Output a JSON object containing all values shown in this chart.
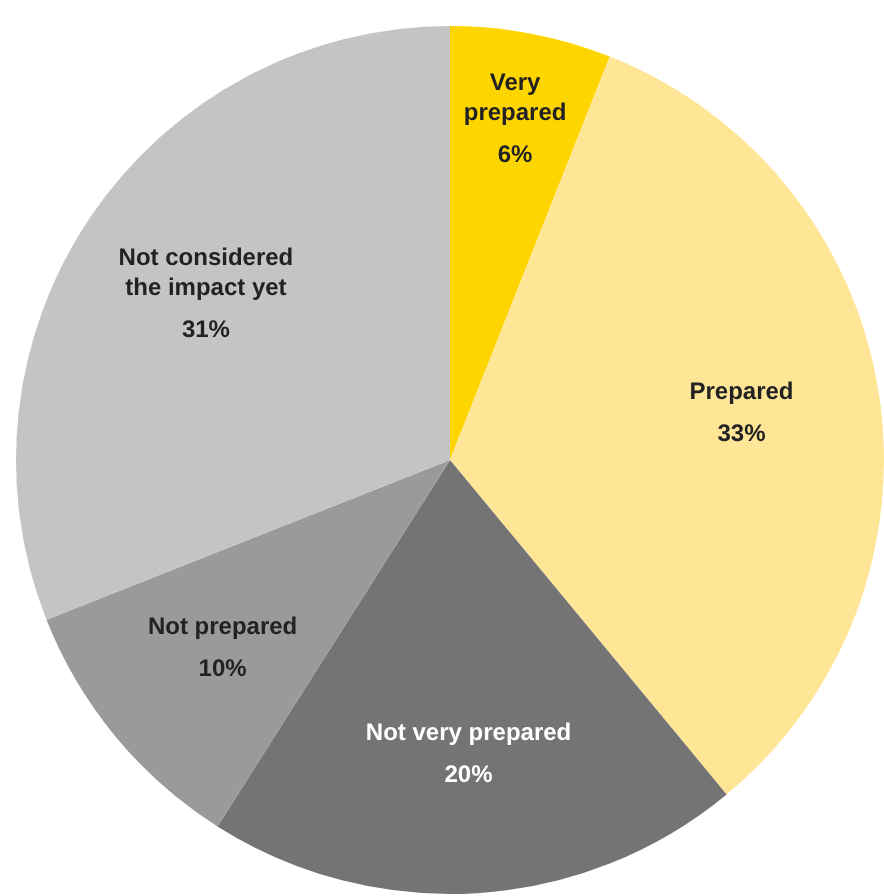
{
  "chart_data": {
    "type": "pie",
    "categories": [
      "Very prepared",
      "Prepared",
      "Not very prepared",
      "Not prepared",
      "Not considered the impact yet"
    ],
    "values": [
      6,
      33,
      20,
      10,
      31
    ],
    "value_labels": [
      "6%",
      "33%",
      "20%",
      "10%",
      "31%"
    ],
    "colors": [
      "#ffd500",
      "#ffe696",
      "#747474",
      "#9a9a9a",
      "#c4c4c4"
    ],
    "legend": false
  }
}
